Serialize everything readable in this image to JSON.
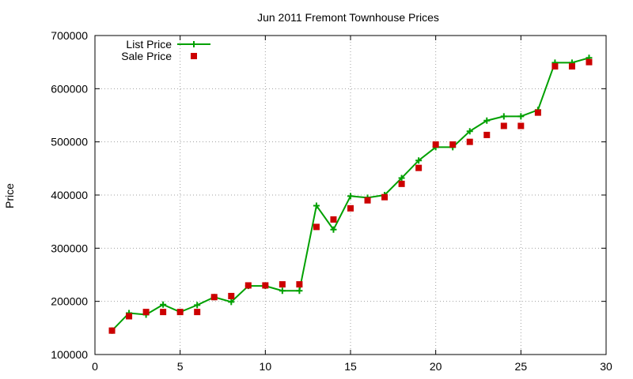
{
  "chart_data": {
    "type": "line",
    "title": "Jun 2011 Fremont Townhouse Prices",
    "xlabel": "",
    "ylabel": "Price",
    "xlim": [
      0,
      30
    ],
    "ylim": [
      100000,
      700000
    ],
    "xticks": [
      0,
      5,
      10,
      15,
      20,
      25,
      30
    ],
    "yticks": [
      100000,
      200000,
      300000,
      400000,
      500000,
      600000,
      700000
    ],
    "grid": true,
    "legend_position": "top-left",
    "series": [
      {
        "name": "List Price",
        "style": "line+crosses",
        "color": "#00a000",
        "x": [
          1,
          2,
          3,
          4,
          5,
          6,
          7,
          8,
          9,
          10,
          11,
          12,
          13,
          14,
          15,
          16,
          17,
          18,
          19,
          20,
          21,
          22,
          23,
          24,
          25,
          26,
          27,
          28,
          29
        ],
        "y": [
          145000,
          178000,
          175000,
          194000,
          180000,
          193000,
          208000,
          199000,
          229000,
          229000,
          220000,
          220000,
          380000,
          335000,
          398000,
          395000,
          400000,
          432000,
          465000,
          490000,
          490000,
          520000,
          540000,
          548000,
          548000,
          560000,
          649000,
          649000,
          658000
        ]
      },
      {
        "name": "Sale Price",
        "style": "squares",
        "color": "#cc0000",
        "x": [
          1,
          2,
          3,
          4,
          5,
          6,
          7,
          8,
          9,
          10,
          11,
          12,
          13,
          14,
          15,
          16,
          17,
          18,
          19,
          20,
          21,
          22,
          23,
          24,
          25,
          26,
          27,
          28,
          29
        ],
        "y": [
          145000,
          172000,
          180000,
          180000,
          180000,
          180000,
          208000,
          210000,
          230000,
          230000,
          232000,
          232000,
          340000,
          354000,
          375000,
          390000,
          396000,
          421000,
          451000,
          495000,
          495000,
          500000,
          513000,
          530000,
          530000,
          555000,
          642000,
          642000,
          650000
        ]
      }
    ]
  }
}
